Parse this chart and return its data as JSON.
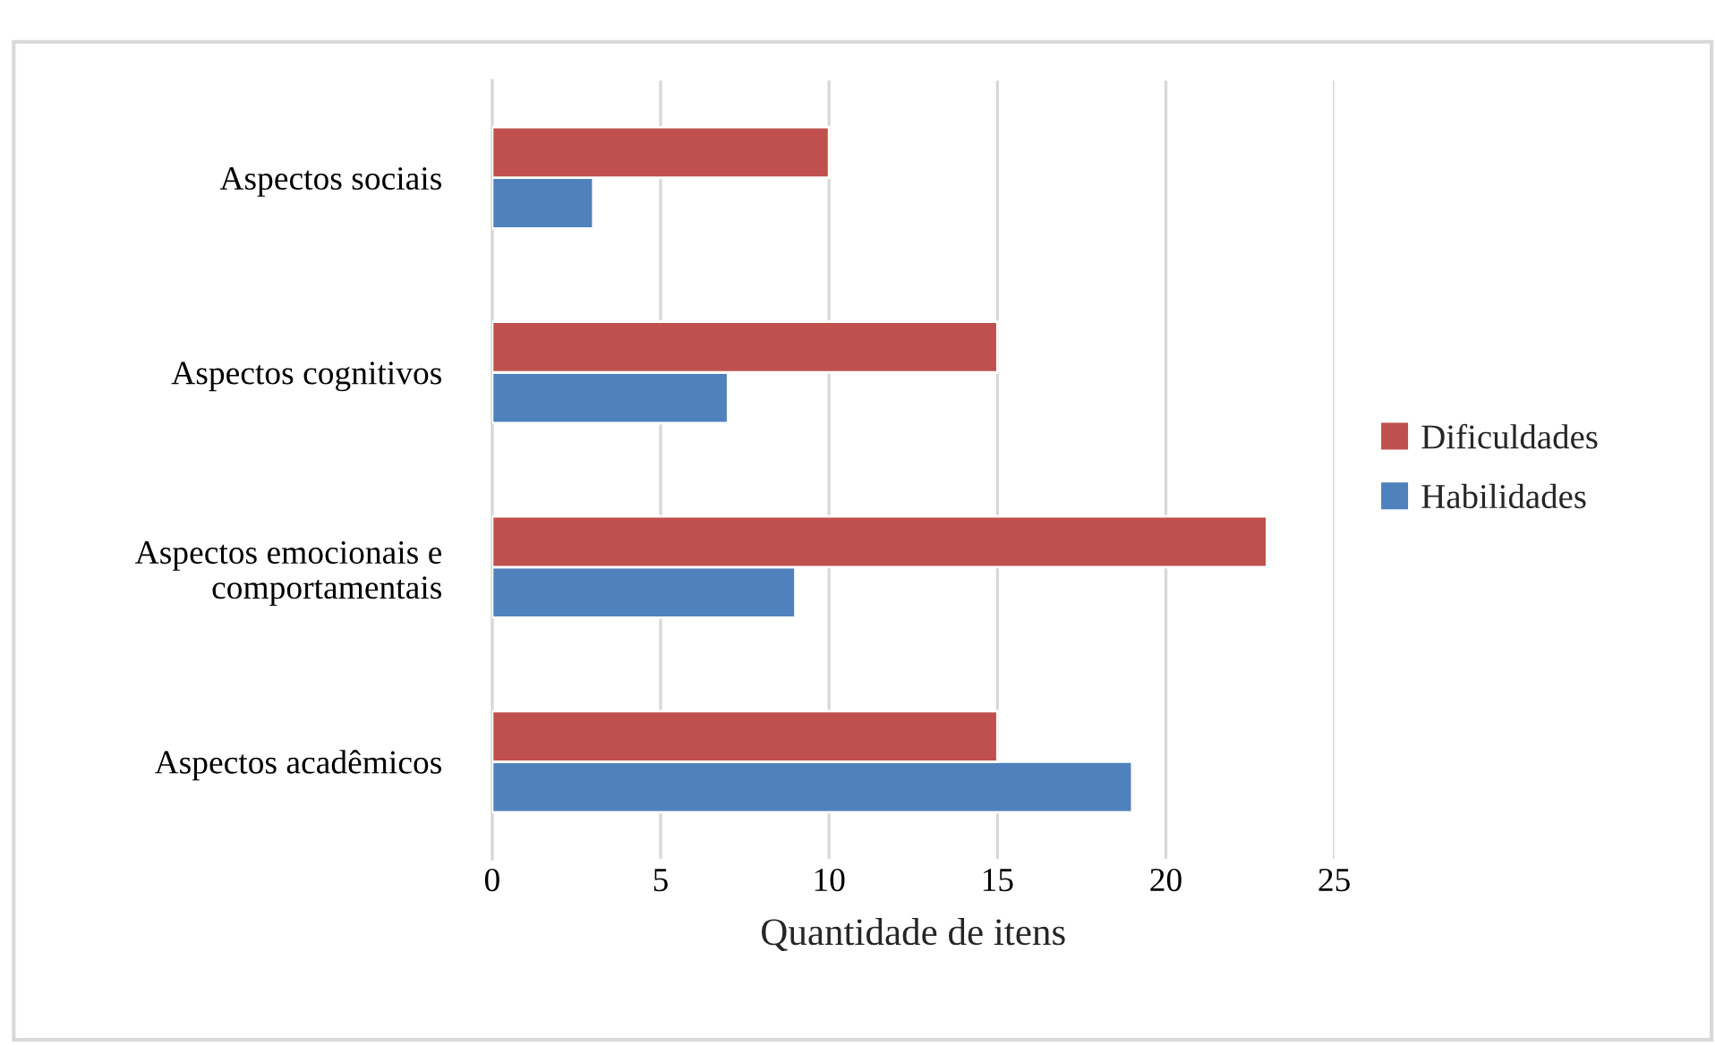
{
  "chart_data": {
    "type": "bar",
    "orientation": "horizontal",
    "xlabel": "Quantidade de itens",
    "categories": [
      "Aspectos sociais",
      "Aspectos cognitivos",
      "Aspectos emocionais e\ncomportamentais",
      "Aspectos acadêmicos"
    ],
    "series": [
      {
        "name": "Habilidades",
        "color": "#4f81bd",
        "values": [
          3,
          7,
          9,
          19
        ]
      },
      {
        "name": "Dificuldades",
        "color": "#c0504d",
        "values": [
          10,
          15,
          23,
          15
        ]
      }
    ],
    "xlim": [
      0,
      25
    ],
    "xticks": [
      0,
      5,
      10,
      15,
      20,
      25
    ],
    "grid": "x",
    "legend": "right"
  }
}
